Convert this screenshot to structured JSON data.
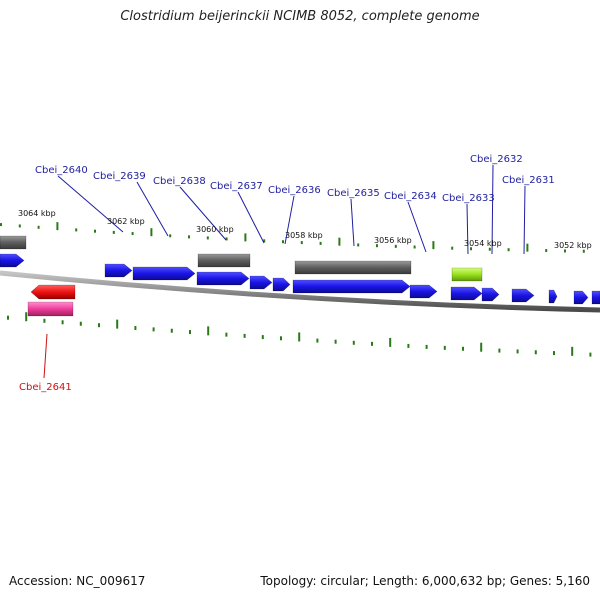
{
  "title": "Clostridium beijerinckii NCIMB 8052, complete genome",
  "footer": {
    "accession": "Accession: NC_009617",
    "summary": "Topology: circular; Length: 6,000,632 bp; Genes: 5,160"
  },
  "scale_labels": [
    "3064 kbp",
    "3062 kbp",
    "3060 kbp",
    "3058 kbp",
    "3056 kbp",
    "3054 kbp",
    "3052 kbp"
  ],
  "gene_labels_top": [
    "Cbei_2640",
    "Cbei_2639",
    "Cbei_2638",
    "Cbei_2637",
    "Cbei_2636",
    "Cbei_2635",
    "Cbei_2634",
    "Cbei_2633",
    "Cbei_2632",
    "Cbei_2631"
  ],
  "gene_labels_bottom": [
    "Cbei_2641"
  ],
  "colors": {
    "gene": "#1a14e6",
    "pseudo": "#6b6b6b",
    "highlight_red": "#ee1111",
    "highlight_pink": "#ee3c9a",
    "highlight_green": "#99e01f",
    "tick": "#2a7a18",
    "label_blue": "#1f1fa0",
    "label_red": "#cc1111",
    "backbone": "#8a8a8a"
  }
}
